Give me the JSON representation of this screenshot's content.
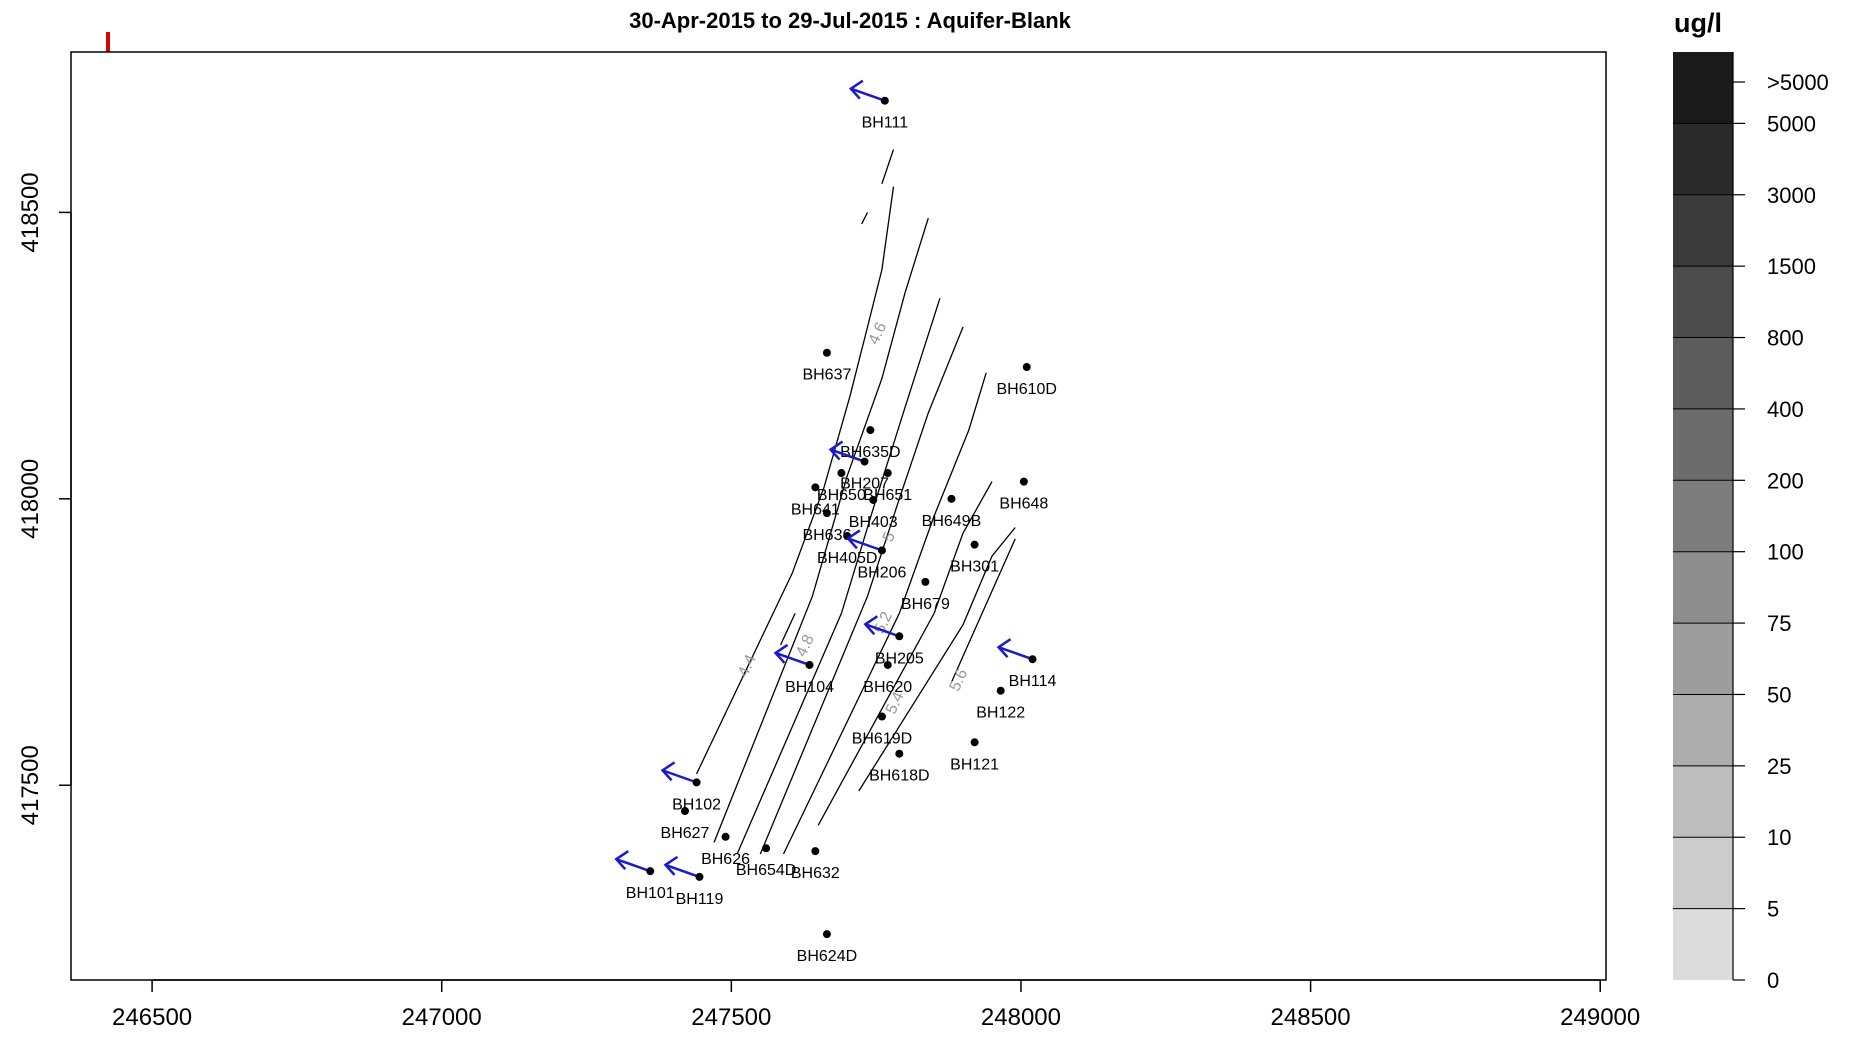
{
  "chart_data": {
    "type": "scatter",
    "title": "30-Apr-2015 to 29-Jul-2015 : Aquifer-Blank",
    "xlabel": "",
    "ylabel": "",
    "xlim": [
      246360,
      249010
    ],
    "ylim": [
      417160,
      418780
    ],
    "x_ticks": [
      246500,
      247000,
      247500,
      248000,
      248500,
      249000
    ],
    "y_ticks": [
      417500,
      418000,
      418500
    ],
    "grid": false,
    "colors": {
      "points": "#000000",
      "arrows": "#1a1acc",
      "contours": "#000000",
      "contour_labels": "#999999",
      "marker": "#dd0000"
    },
    "boreholes": [
      {
        "name": "BH111",
        "x": 247765,
        "y": 418695,
        "arrow": true
      },
      {
        "name": "BH637",
        "x": 247665,
        "y": 418255,
        "arrow": false
      },
      {
        "name": "BH610D",
        "x": 248010,
        "y": 418230,
        "arrow": false
      },
      {
        "name": "BH635D",
        "x": 247740,
        "y": 418120,
        "arrow": false
      },
      {
        "name": "BH207",
        "x": 247730,
        "y": 418065,
        "arrow": true
      },
      {
        "name": "BH650",
        "x": 247690,
        "y": 418045,
        "arrow": false
      },
      {
        "name": "BH651",
        "x": 247770,
        "y": 418045,
        "arrow": false
      },
      {
        "name": "BH641",
        "x": 247645,
        "y": 418020,
        "arrow": false
      },
      {
        "name": "BH403",
        "x": 247745,
        "y": 417998,
        "arrow": false
      },
      {
        "name": "BH648",
        "x": 248005,
        "y": 418030,
        "arrow": false
      },
      {
        "name": "BH649B",
        "x": 247880,
        "y": 418000,
        "arrow": false
      },
      {
        "name": "BH636",
        "x": 247665,
        "y": 417975,
        "arrow": false
      },
      {
        "name": "BH405D",
        "x": 247700,
        "y": 417935,
        "arrow": false
      },
      {
        "name": "BH206",
        "x": 247760,
        "y": 417910,
        "arrow": true
      },
      {
        "name": "BH301",
        "x": 247920,
        "y": 417920,
        "arrow": false
      },
      {
        "name": "BH679",
        "x": 247835,
        "y": 417855,
        "arrow": false
      },
      {
        "name": "BH205",
        "x": 247790,
        "y": 417760,
        "arrow": true
      },
      {
        "name": "BH104",
        "x": 247635,
        "y": 417710,
        "arrow": true
      },
      {
        "name": "BH620",
        "x": 247770,
        "y": 417710,
        "arrow": false
      },
      {
        "name": "BH114",
        "x": 248020,
        "y": 417720,
        "arrow": true
      },
      {
        "name": "BH122",
        "x": 247965,
        "y": 417665,
        "arrow": false
      },
      {
        "name": "BH619D",
        "x": 247760,
        "y": 417620,
        "arrow": false
      },
      {
        "name": "BH618D",
        "x": 247790,
        "y": 417555,
        "arrow": false
      },
      {
        "name": "BH121",
        "x": 247920,
        "y": 417575,
        "arrow": false
      },
      {
        "name": "BH102",
        "x": 247440,
        "y": 417505,
        "arrow": true
      },
      {
        "name": "BH627",
        "x": 247420,
        "y": 417455,
        "arrow": false
      },
      {
        "name": "BH626",
        "x": 247490,
        "y": 417410,
        "arrow": false
      },
      {
        "name": "BH654D",
        "x": 247560,
        "y": 417390,
        "arrow": false
      },
      {
        "name": "BH632",
        "x": 247645,
        "y": 417385,
        "arrow": false
      },
      {
        "name": "BH101",
        "x": 247360,
        "y": 417350,
        "arrow": true
      },
      {
        "name": "BH119",
        "x": 247445,
        "y": 417340,
        "arrow": true
      },
      {
        "name": "BH624D",
        "x": 247665,
        "y": 417240,
        "arrow": false
      }
    ],
    "contours": [
      {
        "label": "4.4",
        "label_at": [
          247535,
          417705
        ],
        "segments": [
          [
            [
              247440,
              417520
            ],
            [
              247605,
              417870
            ],
            [
              247660,
              418020
            ],
            [
              247705,
              418180
            ],
            [
              247735,
              418300
            ],
            [
              247760,
              418400
            ],
            [
              247780,
              418545
            ]
          ],
          [
            [
              247585,
              417745
            ],
            [
              247610,
              417800
            ]
          ]
        ]
      },
      {
        "label": "4.6",
        "label_at": [
          247760,
          418285
        ],
        "segments": [
          [
            [
              247470,
              417400
            ],
            [
              247640,
              417830
            ],
            [
              247700,
              418040
            ],
            [
              247760,
              418210
            ],
            [
              247800,
              418360
            ],
            [
              247840,
              418490
            ]
          ]
        ]
      },
      {
        "label": "4.8",
        "label_at": [
          247635,
          417740
        ],
        "segments": [
          [
            [
              247510,
              417380
            ],
            [
              247690,
              417800
            ],
            [
              247750,
              418000
            ],
            [
              247800,
              418160
            ],
            [
              247860,
              418350
            ]
          ]
        ]
      },
      {
        "label": "5",
        "label_at": [
          247780,
          417930
        ],
        "segments": [
          [
            [
              247550,
              417380
            ],
            [
              247735,
              417830
            ],
            [
              247790,
              418000
            ],
            [
              247840,
              418150
            ],
            [
              247900,
              418300
            ]
          ]
        ]
      },
      {
        "label": "5.2",
        "label_at": [
          247770,
          417780
        ],
        "segments": [
          [
            [
              247590,
              417380
            ],
            [
              247790,
              417800
            ],
            [
              247850,
              417970
            ],
            [
              247910,
              418120
            ],
            [
              247940,
              418220
            ]
          ]
        ]
      },
      {
        "label": "5.4",
        "label_at": [
          247790,
          417640
        ],
        "segments": [
          [
            [
              247650,
              417430
            ],
            [
              247850,
              417800
            ],
            [
              247900,
              417940
            ],
            [
              247950,
              418030
            ]
          ]
        ]
      },
      {
        "label": "5.6",
        "label_at": [
          247900,
          417680
        ],
        "segments": [
          [
            [
              247720,
              417490
            ],
            [
              247900,
              417780
            ],
            [
              247950,
              417900
            ],
            [
              247990,
              417950
            ]
          ],
          [
            [
              247880,
              417680
            ],
            [
              247990,
              417930
            ]
          ]
        ]
      },
      {
        "label": "",
        "label_at": null,
        "segments": [
          [
            [
              247760,
              418550
            ],
            [
              247780,
              418610
            ]
          ],
          [
            [
              247725,
              418480
            ],
            [
              247735,
              418500
            ]
          ]
        ]
      }
    ]
  },
  "legend": {
    "unit": "ug/l",
    "levels": [
      "0",
      "5",
      "10",
      "25",
      "50",
      "75",
      "100",
      "200",
      "400",
      "800",
      "1500",
      "3000",
      "5000",
      ">5000"
    ],
    "fills": [
      "#dcdcdc",
      "#cccccc",
      "#bdbdbd",
      "#adadad",
      "#9d9d9d",
      "#8d8d8d",
      "#7c7c7c",
      "#6c6c6c",
      "#5c5c5c",
      "#4b4b4b",
      "#3b3b3b",
      "#2a2a2a",
      "#1a1a1a"
    ]
  }
}
